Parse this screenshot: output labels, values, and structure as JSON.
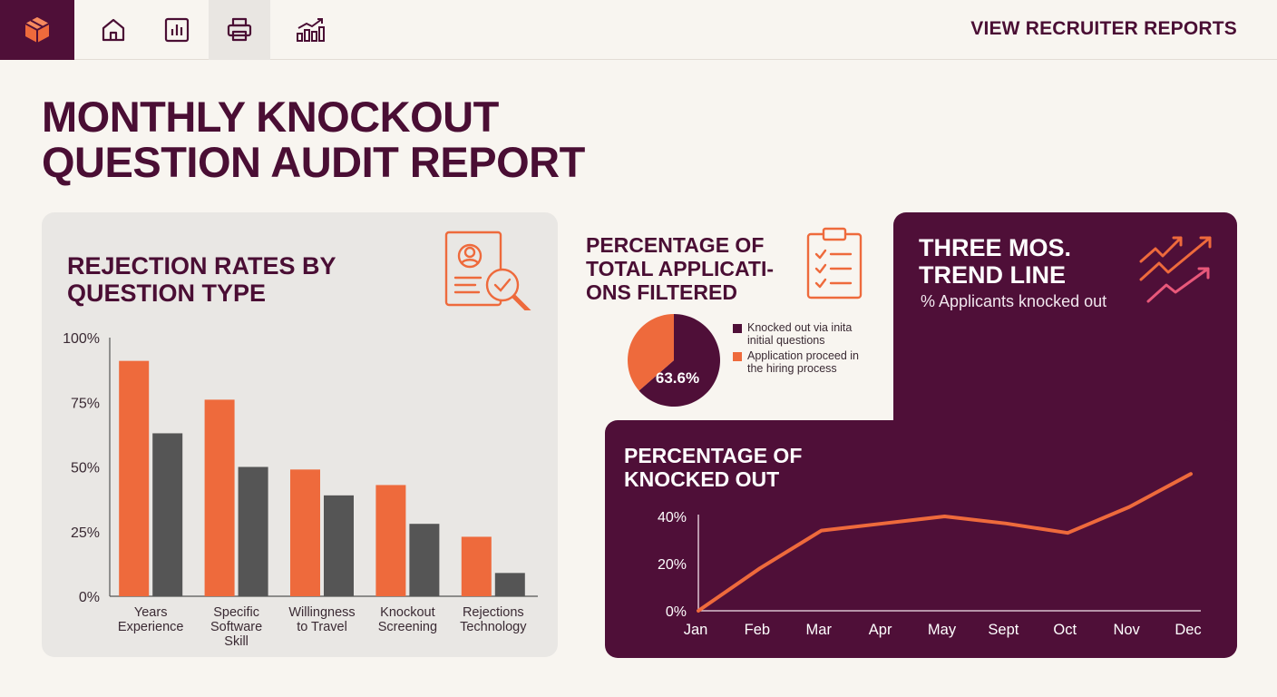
{
  "header": {
    "report_link": "VIEW RECRUITER REPORTS",
    "nav": [
      {
        "icon": "home-icon"
      },
      {
        "icon": "bar-chart-icon"
      },
      {
        "icon": "printer-icon"
      },
      {
        "icon": "growth-chart-icon"
      }
    ],
    "logo_icon": "cube-logo-icon"
  },
  "page": {
    "title": "MONTHLY KNOCKOUT QUESTION AUDIT REPORT"
  },
  "bar_panel": {
    "title": "REJECTION RATES BY QUESTION TYPE",
    "icon": "profile-search-icon"
  },
  "pie_panel": {
    "title": "PERCENTAGE OF TOTAL APPLICATI-ONS FILTERED",
    "icon": "clipboard-checklist-icon",
    "legend": [
      {
        "label": "Knocked out via inita initial questions",
        "color": "#4f0f38"
      },
      {
        "label": "Application proceed in the hiring process",
        "color": "#ee6a3c"
      }
    ]
  },
  "trend_panel": {
    "title": "THREE MOS. TREND LINE",
    "subtitle": "% Applicants knocked out",
    "icon": "trend-arrows-icon"
  },
  "line_panel": {
    "title": "PERCENTAGE OF KNOCKED OUT"
  },
  "colors": {
    "brand": "#4f0f38",
    "accent": "#ee6a3c",
    "gray_bar": "#555555",
    "panel_bg": "#e9e7e4",
    "page_bg": "#f8f5f0"
  },
  "chart_data": [
    {
      "type": "bar",
      "title": "REJECTION RATES BY QUESTION TYPE",
      "categories": [
        "Years Experience",
        "Specific Software Skill",
        "Willingness to Travel",
        "Knockout Screening",
        "Rejections Technology"
      ],
      "series": [
        {
          "values": [
            91,
            76,
            49,
            43,
            23
          ],
          "color": "#ee6a3c"
        },
        {
          "values": [
            63,
            50,
            39,
            28,
            9
          ],
          "color": "#555555"
        }
      ],
      "yticks": [
        "0%",
        "25%",
        "50%",
        "75%",
        "100%"
      ],
      "ylim": [
        0,
        100
      ],
      "grid": false
    },
    {
      "type": "pie",
      "title": "PERCENTAGE OF TOTAL APPLICATI-ONS FILTERED",
      "slices": [
        {
          "label": "Knocked out via inita initial questions",
          "value": 63.6,
          "color": "#4f0f38"
        },
        {
          "label": "Application proceed in the hiring process",
          "value": 36.4,
          "color": "#ee6a3c"
        }
      ],
      "data_label": "63.6%"
    },
    {
      "type": "line",
      "title": "PERCENTAGE OF KNOCKED OUT",
      "x": [
        "Jan",
        "Feb",
        "Mar",
        "Apr",
        "May",
        "Sept",
        "Oct",
        "Nov",
        "Dec"
      ],
      "series": [
        {
          "values": [
            0,
            18,
            34,
            37,
            40,
            37,
            33,
            44,
            58
          ],
          "color": "#ee6a3c"
        }
      ],
      "yticks": [
        "0%",
        "20%",
        "40%"
      ],
      "ylim": [
        0,
        50
      ],
      "grid": false
    }
  ]
}
